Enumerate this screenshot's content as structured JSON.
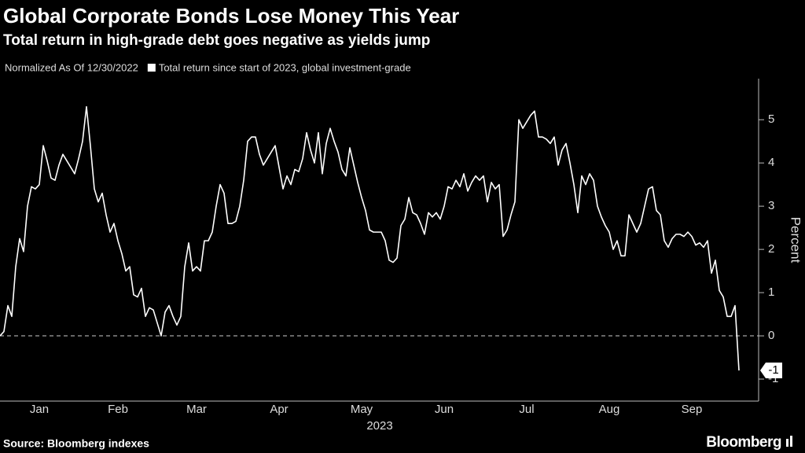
{
  "chart_data": {
    "type": "line",
    "title": "Global Corporate Bonds Lose Money This Year",
    "subtitle": "Total return in high-grade debt goes negative as yields jump",
    "note": "Normalized As Of 12/30/2022",
    "xlabel": "2023",
    "ylabel": "Percent",
    "source": "Source: Bloomberg indexes",
    "brand": "Bloomberg",
    "ylim": [
      -1.5,
      5.95
    ],
    "yticks": [
      -1,
      0,
      1,
      2,
      3,
      4,
      5
    ],
    "categories": [
      null,
      null,
      null,
      null,
      null,
      null,
      null,
      null,
      null,
      null,
      "Jan",
      null,
      null,
      null,
      null,
      null,
      null,
      null,
      null,
      null,
      null,
      null,
      null,
      null,
      null,
      null,
      null,
      null,
      null,
      null,
      "Feb",
      null,
      null,
      null,
      null,
      null,
      null,
      null,
      null,
      null,
      null,
      null,
      null,
      null,
      null,
      null,
      null,
      null,
      null,
      null,
      "Mar",
      null,
      null,
      null,
      null,
      null,
      null,
      null,
      null,
      null,
      null,
      null,
      null,
      null,
      null,
      null,
      null,
      null,
      null,
      null,
      null,
      "Apr",
      null,
      null,
      null,
      null,
      null,
      null,
      null,
      null,
      null,
      null,
      null,
      null,
      null,
      null,
      null,
      null,
      null,
      null,
      null,
      null,
      "May",
      null,
      null,
      null,
      null,
      null,
      null,
      null,
      null,
      null,
      null,
      null,
      null,
      null,
      null,
      null,
      null,
      null,
      null,
      null,
      null,
      "Jun",
      null,
      null,
      null,
      null,
      null,
      null,
      null,
      null,
      null,
      null,
      null,
      null,
      null,
      null,
      null,
      null,
      null,
      null,
      null,
      null,
      "Jul",
      null,
      null,
      null,
      null,
      null,
      null,
      null,
      null,
      null,
      null,
      null,
      null,
      null,
      null,
      null,
      null,
      null,
      null,
      null,
      null,
      "Aug",
      null,
      null,
      null,
      null,
      null,
      null,
      null,
      null,
      null,
      null,
      null,
      null,
      null,
      null,
      null,
      null,
      null,
      null,
      null,
      null,
      "Sep",
      null,
      null,
      null,
      null,
      null,
      null,
      null,
      null,
      null,
      null,
      null,
      null
    ],
    "series": [
      {
        "name": "Total return since start of 2023, global investment-grade",
        "color": "#ffffff",
        "values": [
          0,
          0.1,
          0.7,
          0.45,
          1.6,
          2.25,
          1.95,
          3.0,
          3.45,
          3.4,
          3.5,
          4.4,
          4.05,
          3.65,
          3.6,
          3.95,
          4.2,
          4.05,
          3.9,
          3.75,
          4.1,
          4.5,
          5.3,
          4.4,
          3.4,
          3.1,
          3.3,
          2.8,
          2.4,
          2.6,
          2.2,
          1.9,
          1.5,
          1.6,
          0.95,
          0.9,
          1.1,
          0.45,
          0.65,
          0.6,
          0.3,
          0.0,
          0.55,
          0.7,
          0.45,
          0.25,
          0.45,
          1.6,
          2.15,
          1.5,
          1.6,
          1.5,
          2.2,
          2.2,
          2.4,
          3.0,
          3.5,
          3.3,
          2.6,
          2.6,
          2.65,
          3.0,
          3.6,
          4.5,
          4.6,
          4.6,
          4.2,
          3.95,
          4.1,
          4.25,
          4.4,
          3.9,
          3.4,
          3.7,
          3.5,
          3.85,
          3.8,
          4.1,
          4.7,
          4.3,
          4.0,
          4.7,
          3.75,
          4.45,
          4.8,
          4.5,
          4.25,
          3.85,
          3.7,
          4.35,
          3.95,
          3.55,
          3.2,
          2.9,
          2.45,
          2.4,
          2.4,
          2.4,
          2.2,
          1.75,
          1.7,
          1.8,
          2.55,
          2.7,
          3.2,
          2.85,
          2.8,
          2.6,
          2.35,
          2.85,
          2.75,
          2.85,
          2.7,
          3.0,
          3.45,
          3.4,
          3.6,
          3.45,
          3.75,
          3.35,
          3.55,
          3.7,
          3.6,
          3.7,
          3.1,
          3.55,
          3.4,
          3.5,
          2.3,
          2.45,
          2.8,
          3.1,
          5.0,
          4.8,
          4.95,
          5.1,
          5.2,
          4.6,
          4.6,
          4.55,
          4.45,
          4.6,
          3.95,
          4.3,
          4.45,
          4.0,
          3.5,
          2.85,
          3.7,
          3.5,
          3.75,
          3.6,
          3.0,
          2.75,
          2.55,
          2.4,
          2.0,
          2.2,
          1.85,
          1.85,
          2.8,
          2.6,
          2.4,
          2.6,
          3.0,
          3.4,
          3.45,
          2.9,
          2.8,
          2.2,
          2.05,
          2.25,
          2.35,
          2.35,
          2.3,
          2.4,
          2.3,
          2.1,
          2.15,
          2.05,
          2.2,
          1.45,
          1.75,
          1.05,
          0.9,
          0.45,
          0.45,
          0.7,
          -0.8
        ],
        "value_labels": [
          null,
          null,
          null,
          null,
          null,
          null,
          null,
          null,
          null,
          null,
          null,
          null,
          null,
          null,
          null,
          null,
          null,
          null,
          null,
          null,
          null,
          null,
          null,
          null,
          null,
          null,
          null,
          null,
          null,
          null,
          null,
          null,
          null,
          null,
          null,
          null,
          null,
          null,
          null,
          null,
          null,
          null,
          null,
          null,
          null,
          null,
          null,
          null,
          null,
          null,
          null,
          null,
          null,
          null,
          null,
          null,
          null,
          null,
          null,
          null,
          null,
          null,
          null,
          null,
          null,
          null,
          null,
          null,
          null,
          null,
          null,
          null,
          null,
          null,
          null,
          null,
          null,
          null,
          null,
          null,
          null,
          null,
          null,
          null,
          null,
          null,
          null,
          null,
          null,
          null,
          null,
          null,
          null,
          null,
          null,
          null,
          null,
          null,
          null,
          null,
          null,
          null,
          null,
          null,
          null,
          null,
          null,
          null,
          null,
          null,
          null,
          null,
          null,
          null,
          null,
          null,
          null,
          null,
          null,
          null,
          null,
          null,
          null,
          null,
          null,
          null,
          null,
          null,
          null,
          null,
          null,
          null,
          null,
          null,
          null,
          null,
          null,
          null,
          null,
          null,
          null,
          null,
          null,
          null,
          null,
          null,
          null,
          null,
          null,
          null,
          null,
          null,
          null,
          null,
          null,
          null,
          null,
          null,
          null,
          null,
          null,
          null,
          null,
          null,
          null,
          null,
          null,
          null,
          null,
          null,
          null,
          null,
          null,
          null,
          null,
          null,
          null,
          null,
          null,
          null,
          null,
          null,
          null,
          null,
          null,
          null,
          null,
          null,
          "-1"
        ]
      }
    ]
  }
}
